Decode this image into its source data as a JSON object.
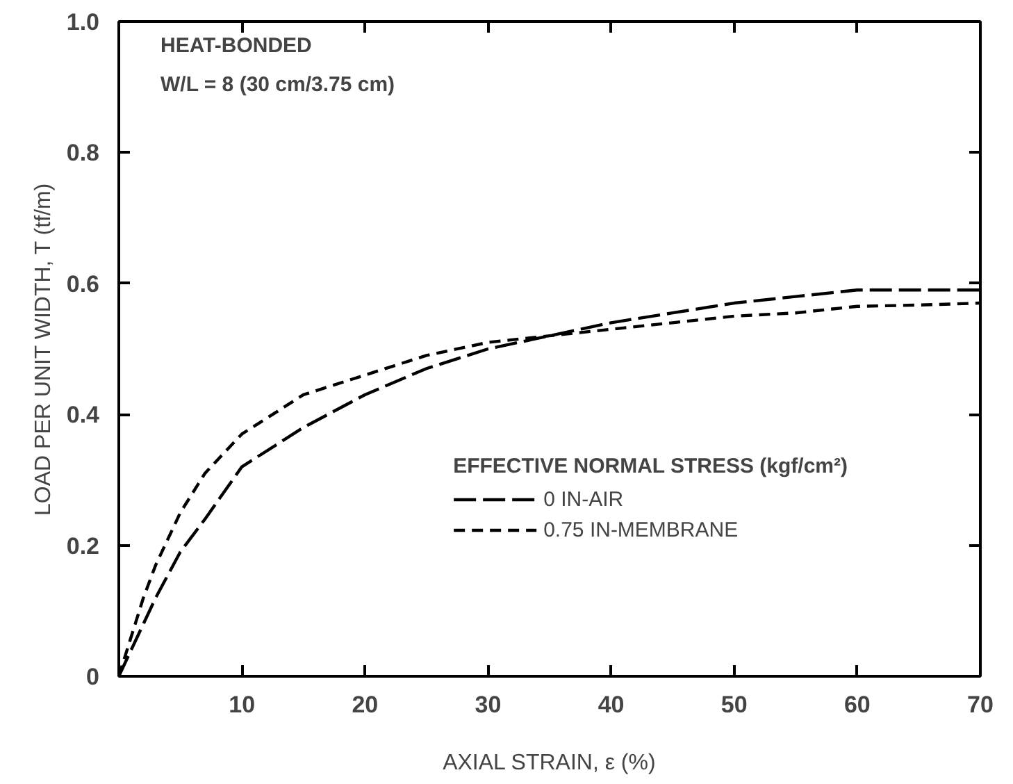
{
  "chart_data": {
    "type": "line",
    "xlabel": "AXIAL STRAIN, ε (%)",
    "ylabel": "LOAD PER UNIT WIDTH, T (tf/m)",
    "annotations": [
      "HEAT-BONDED",
      "W/L = 8 (30 cm/3.75 cm)"
    ],
    "legend_title": "EFFECTIVE NORMAL STRESS (kgf/cm²)",
    "legend": "right",
    "xlim": [
      0,
      70
    ],
    "ylim": [
      0,
      1.0
    ],
    "xticks": [
      {
        "value": 0,
        "label": null
      },
      10,
      20,
      30,
      40,
      50,
      60,
      70
    ],
    "yticks": [
      0,
      0.2,
      0.4,
      0.6,
      0.8,
      {
        "value": 1.0,
        "label": "1.0"
      }
    ],
    "grid": false,
    "marker": "none",
    "line_style": "dashed",
    "series": [
      {
        "name": "0 IN-AIR",
        "color": "#000000",
        "x": [
          0,
          1,
          2,
          3,
          5,
          7,
          10,
          15,
          20,
          25,
          30,
          35,
          40,
          45,
          50,
          55,
          60,
          65,
          70
        ],
        "values": [
          0,
          0.04,
          0.08,
          0.12,
          0.19,
          0.24,
          0.32,
          0.38,
          0.43,
          0.47,
          0.5,
          0.52,
          0.54,
          0.555,
          0.57,
          0.58,
          0.59,
          0.59,
          0.59
        ]
      },
      {
        "name": "0.75 IN-MEMBRANE",
        "color": "#000000",
        "x": [
          0,
          1,
          2,
          3,
          5,
          7,
          10,
          15,
          20,
          25,
          30,
          35,
          40,
          45,
          50,
          55,
          60,
          65,
          70
        ],
        "values": [
          0,
          0.06,
          0.12,
          0.17,
          0.25,
          0.31,
          0.37,
          0.43,
          0.46,
          0.49,
          0.51,
          0.52,
          0.53,
          0.54,
          0.55,
          0.555,
          0.565,
          0.567,
          0.57
        ]
      }
    ]
  }
}
